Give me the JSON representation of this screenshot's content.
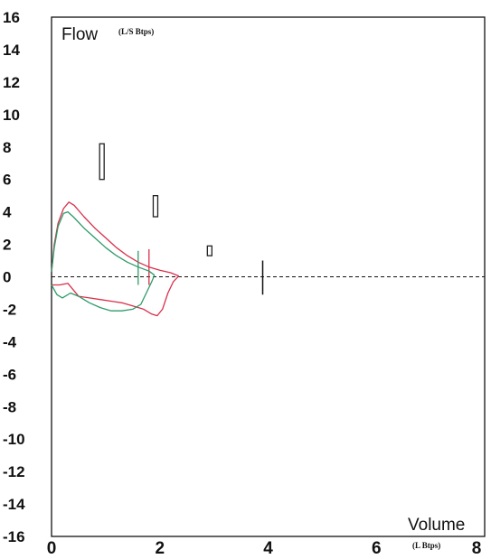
{
  "chart_data": {
    "type": "line",
    "title": "",
    "ylabel": "Flow",
    "ylabel_unit": "(L/S Btps)",
    "xlabel": "Volume",
    "xlabel_unit": "(L Btps)",
    "xlim": [
      0,
      8
    ],
    "ylim": [
      -16,
      16
    ],
    "x_ticks": [
      "0",
      "2",
      "4",
      "6",
      "8"
    ],
    "y_ticks": [
      "16",
      "14",
      "12",
      "10",
      "8",
      "6",
      "4",
      "2",
      "0",
      "-2",
      "-4",
      "-6",
      "-8",
      "-10",
      "-12",
      "-14",
      "-16"
    ],
    "grid": false,
    "zero_line": "dashed",
    "series": [
      {
        "color": "#d8304a",
        "expiratory": [
          [
            0,
            0.3
          ],
          [
            0.05,
            2.0
          ],
          [
            0.12,
            3.3
          ],
          [
            0.22,
            4.2
          ],
          [
            0.32,
            4.6
          ],
          [
            0.42,
            4.4
          ],
          [
            0.6,
            3.7
          ],
          [
            0.8,
            3.0
          ],
          [
            1.0,
            2.4
          ],
          [
            1.2,
            1.8
          ],
          [
            1.4,
            1.3
          ],
          [
            1.6,
            0.9
          ],
          [
            1.8,
            0.6
          ],
          [
            2.0,
            0.4
          ],
          [
            2.2,
            0.25
          ],
          [
            2.35,
            0.05
          ]
        ],
        "inspiratory": [
          [
            0,
            -0.5
          ],
          [
            0.15,
            -0.5
          ],
          [
            0.3,
            -0.4
          ],
          [
            0.5,
            -1.2
          ],
          [
            0.7,
            -1.3
          ],
          [
            0.9,
            -1.4
          ],
          [
            1.1,
            -1.5
          ],
          [
            1.3,
            -1.6
          ],
          [
            1.5,
            -1.8
          ],
          [
            1.7,
            -2.0
          ],
          [
            1.85,
            -2.3
          ],
          [
            1.95,
            -2.4
          ],
          [
            2.05,
            -2.0
          ],
          [
            2.15,
            -1.0
          ],
          [
            2.25,
            -0.3
          ],
          [
            2.35,
            0.05
          ]
        ],
        "marker": {
          "x": 1.8,
          "ymin": -0.5,
          "ymax": 1.7
        }
      },
      {
        "color": "#2e9a6a",
        "expiratory": [
          [
            0,
            0.3
          ],
          [
            0.05,
            1.8
          ],
          [
            0.12,
            3.1
          ],
          [
            0.22,
            3.9
          ],
          [
            0.3,
            4.0
          ],
          [
            0.4,
            3.7
          ],
          [
            0.6,
            3.0
          ],
          [
            0.8,
            2.4
          ],
          [
            1.0,
            1.8
          ],
          [
            1.2,
            1.3
          ],
          [
            1.4,
            0.9
          ],
          [
            1.6,
            0.6
          ],
          [
            1.8,
            0.35
          ],
          [
            1.9,
            0.1
          ]
        ],
        "inspiratory": [
          [
            0,
            -0.5
          ],
          [
            0.1,
            -1.1
          ],
          [
            0.2,
            -1.3
          ],
          [
            0.35,
            -1.0
          ],
          [
            0.5,
            -1.2
          ],
          [
            0.7,
            -1.6
          ],
          [
            0.9,
            -1.9
          ],
          [
            1.1,
            -2.1
          ],
          [
            1.3,
            -2.1
          ],
          [
            1.5,
            -2.0
          ],
          [
            1.65,
            -1.7
          ],
          [
            1.75,
            -1.0
          ],
          [
            1.85,
            -0.3
          ],
          [
            1.9,
            0.1
          ]
        ],
        "marker": {
          "x": 1.6,
          "ymin": -0.5,
          "ymax": 1.6
        }
      }
    ],
    "predicted_markers": [
      {
        "type": "box",
        "x": 0.93,
        "ymin": 6.0,
        "ymax": 8.2
      },
      {
        "type": "box",
        "x": 1.92,
        "ymin": 3.7,
        "ymax": 5.0
      },
      {
        "type": "box",
        "x": 2.92,
        "ymin": 1.3,
        "ymax": 1.9
      },
      {
        "type": "line",
        "x": 3.9,
        "ymin": -1.1,
        "ymax": 1.0
      }
    ]
  }
}
